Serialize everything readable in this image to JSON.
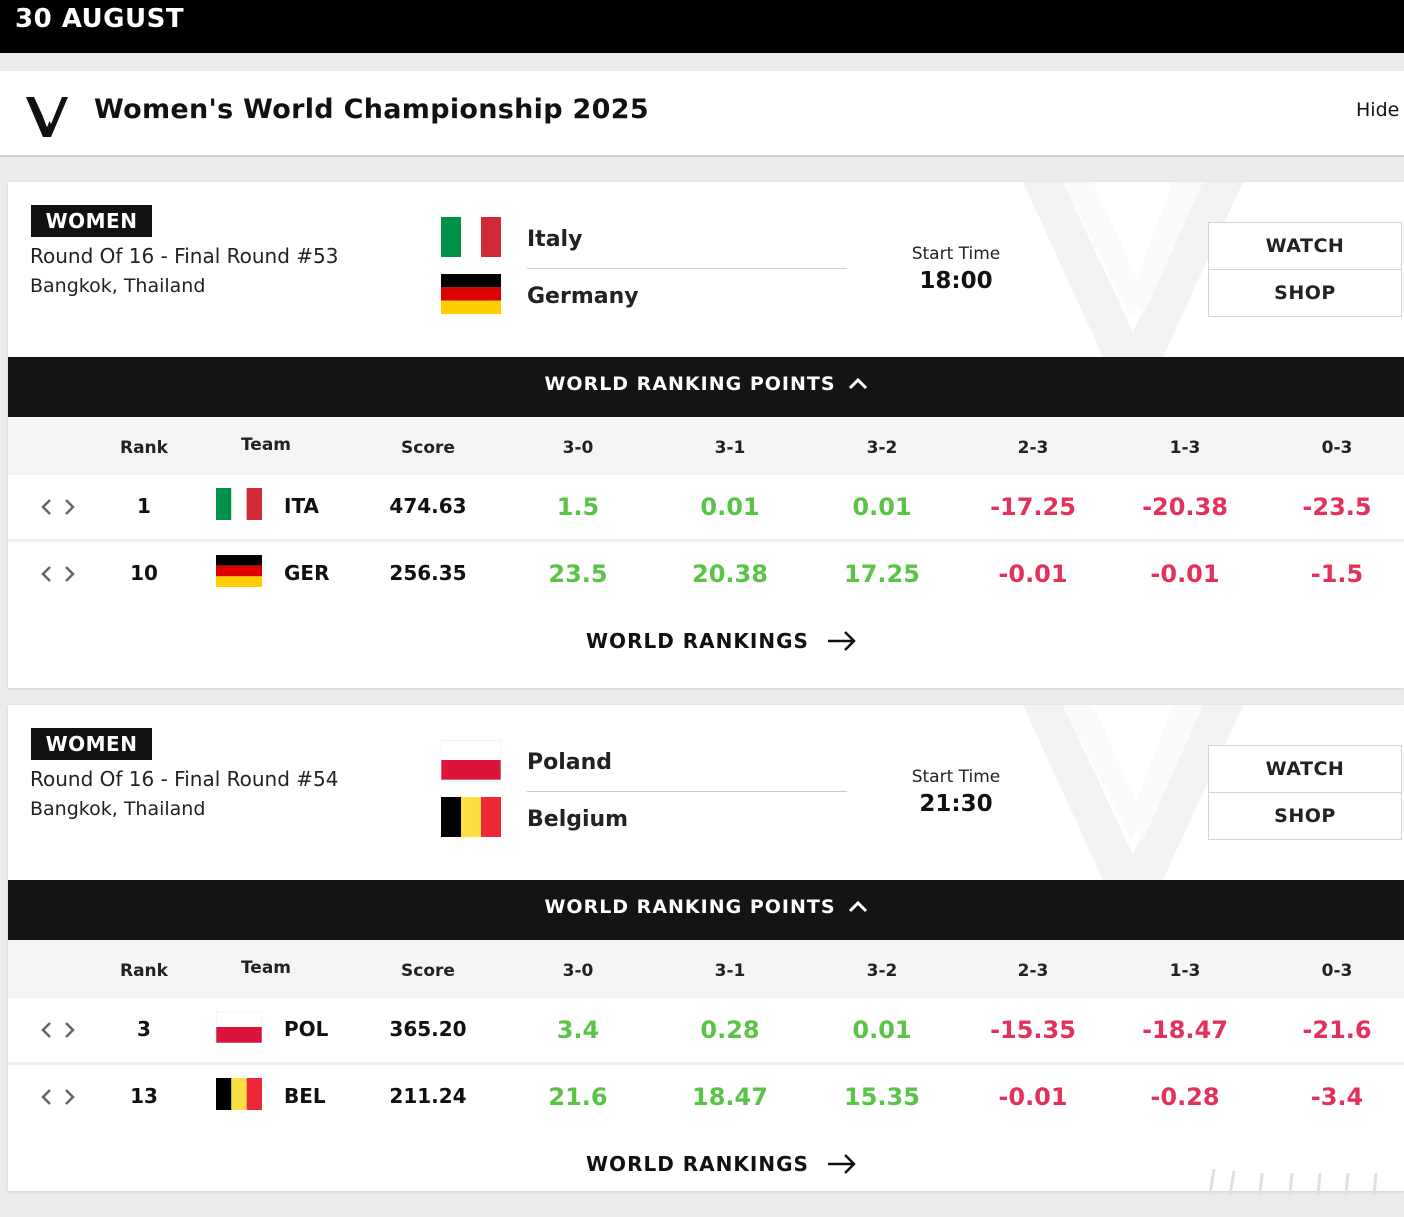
{
  "date_header": "30 AUGUST",
  "competition": {
    "title": "Women's World Championship 2025",
    "hide_label": "Hide",
    "logo_icon": "vnl-logo-icon"
  },
  "colors": {
    "positive": "#5cc349",
    "negative": "#e3325a",
    "dark": "#141414"
  },
  "table_headers": {
    "rank": "Rank",
    "team": "Team",
    "score": "Score",
    "results": [
      "3-0",
      "3-1",
      "3-2",
      "2-3",
      "1-3",
      "0-3"
    ]
  },
  "matches": [
    {
      "gender": "WOMEN",
      "round": "Round Of 16 - Final Round #53",
      "location": "Bangkok, Thailand",
      "team_a": "Italy",
      "team_b": "Germany",
      "start_label": "Start Time",
      "start_time": "18:00",
      "watch_label": "WATCH",
      "shop_label": "SHOP",
      "ranking_points_label": "WORLD RANKING POINTS",
      "world_rankings_label": "WORLD RANKINGS",
      "rows": [
        {
          "rank": "1",
          "code": "ITA",
          "score": "474.63",
          "points": [
            "1.5",
            "0.01",
            "0.01",
            "-17.25",
            "-20.38",
            "-23.5"
          ]
        },
        {
          "rank": "10",
          "code": "GER",
          "score": "256.35",
          "points": [
            "23.5",
            "20.38",
            "17.25",
            "-0.01",
            "-0.01",
            "-1.5"
          ]
        }
      ]
    },
    {
      "gender": "WOMEN",
      "round": "Round Of 16 - Final Round #54",
      "location": "Bangkok, Thailand",
      "team_a": "Poland",
      "team_b": "Belgium",
      "start_label": "Start Time",
      "start_time": "21:30",
      "watch_label": "WATCH",
      "shop_label": "SHOP",
      "ranking_points_label": "WORLD RANKING POINTS",
      "world_rankings_label": "WORLD RANKINGS",
      "rows": [
        {
          "rank": "3",
          "code": "POL",
          "score": "365.20",
          "points": [
            "3.4",
            "0.28",
            "0.01",
            "-15.35",
            "-18.47",
            "-21.6"
          ]
        },
        {
          "rank": "13",
          "code": "BEL",
          "score": "211.24",
          "points": [
            "21.6",
            "18.47",
            "15.35",
            "-0.01",
            "-0.28",
            "-3.4"
          ]
        }
      ]
    }
  ]
}
